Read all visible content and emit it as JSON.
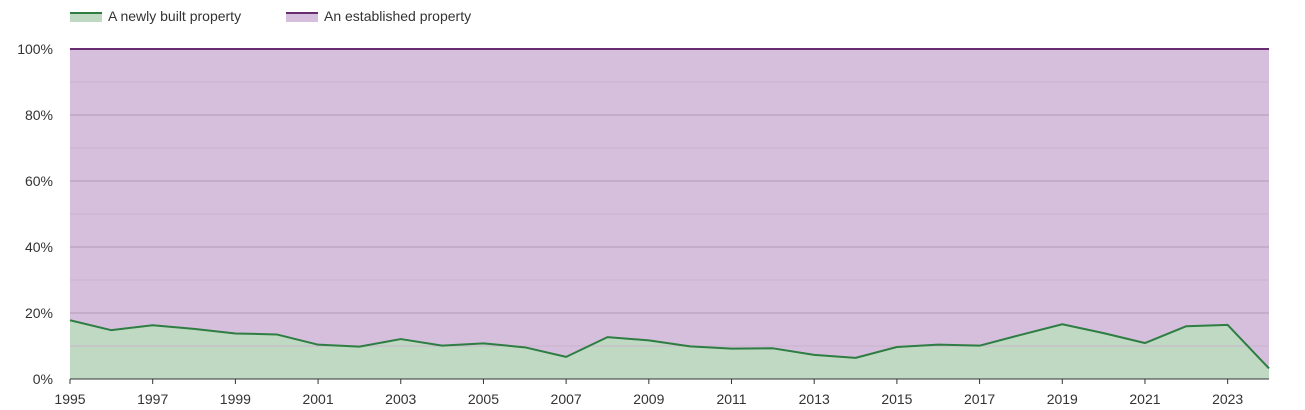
{
  "chart_data": {
    "type": "area",
    "stacked": "percent",
    "x": [
      1995,
      1996,
      1997,
      1998,
      1999,
      2000,
      2001,
      2002,
      2003,
      2004,
      2005,
      2006,
      2007,
      2008,
      2009,
      2010,
      2011,
      2012,
      2013,
      2014,
      2015,
      2016,
      2017,
      2018,
      2019,
      2020,
      2021,
      2022,
      2023,
      2024
    ],
    "series": [
      {
        "name": "A newly built property",
        "color": "#2e7d43",
        "fill": "#bfd9c3",
        "values": [
          17.8,
          14.8,
          16.3,
          15.2,
          13.8,
          13.5,
          10.4,
          9.8,
          12.1,
          10.1,
          10.8,
          9.6,
          6.7,
          12.7,
          11.7,
          9.9,
          9.2,
          9.3,
          7.3,
          6.4,
          9.7,
          10.4,
          10.1,
          13.4,
          16.6,
          13.9,
          10.9,
          16.0,
          16.4,
          3.2
        ]
      },
      {
        "name": "An established property",
        "color": "#6a2c70",
        "fill": "#d6bfdc",
        "values": [
          82.2,
          85.2,
          83.7,
          84.8,
          86.2,
          86.5,
          89.6,
          90.2,
          87.9,
          89.9,
          89.2,
          90.4,
          93.3,
          87.3,
          88.3,
          90.1,
          90.8,
          90.7,
          92.7,
          93.6,
          90.3,
          89.6,
          89.9,
          86.6,
          83.4,
          86.1,
          89.1,
          84.0,
          83.6,
          96.8
        ]
      }
    ],
    "ylim": [
      0,
      100
    ],
    "yticks": [
      "0%",
      "20%",
      "40%",
      "60%",
      "80%",
      "100%"
    ],
    "xticks": [
      "1995",
      "1997",
      "1999",
      "2001",
      "2003",
      "2005",
      "2007",
      "2009",
      "2011",
      "2013",
      "2015",
      "2017",
      "2019",
      "2021",
      "2023"
    ],
    "grid": true,
    "legend_position": "top-left"
  }
}
